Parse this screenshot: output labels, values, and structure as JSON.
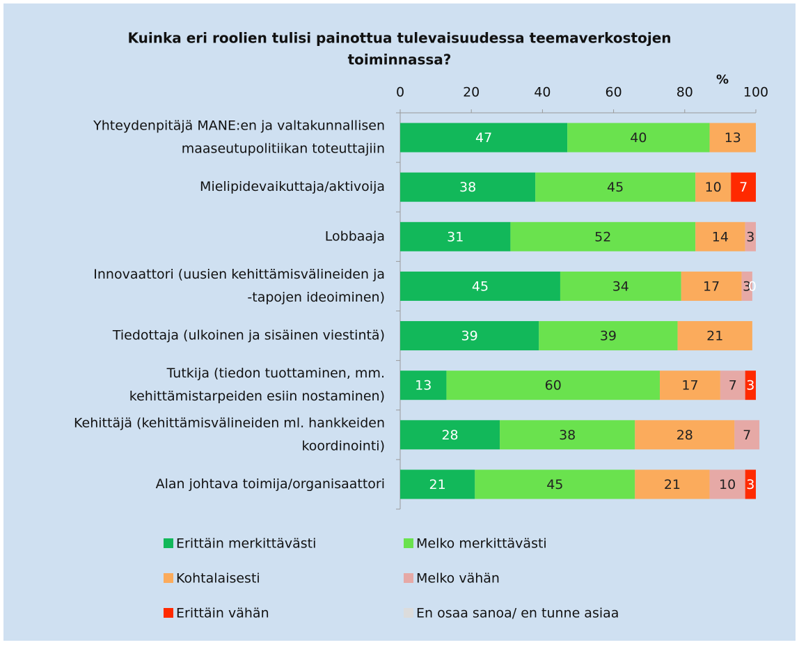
{
  "chart_data": {
    "type": "stacked-barh",
    "title": [
      "Kuinka eri roolien tulisi painottua tulevaisuudessa teemaverkostojen",
      "toiminnassa?"
    ],
    "x_label": "%",
    "categories": [
      [
        "Yhteydenpitäjä MANE:en ja valtakunnallisen",
        "maaseutupolitiikan toteuttajiin"
      ],
      [
        "Mielipidevaikuttaja/aktivoija"
      ],
      [
        "Lobbaaja"
      ],
      [
        "Innovaattori (uusien kehittämisvälineiden ja",
        "-tapojen ideoiminen)"
      ],
      [
        "Tiedottaja (ulkoinen ja sisäinen viestintä)"
      ],
      [
        "Tutkija (tiedon tuottaminen, mm.",
        "kehittämistarpeiden esiin nostaminen)"
      ],
      [
        "Kehittäjä (kehittämisvälineiden ml. hankkeiden",
        "koordinointi)"
      ],
      [
        "Alan johtava toimija/organisaattori"
      ]
    ],
    "series": [
      {
        "name": "Erittäin merkittävästi",
        "color": "#12b85a",
        "label_color": "#ffffff",
        "values": [
          47,
          38,
          31,
          45,
          39,
          13,
          28,
          21
        ]
      },
      {
        "name": "Melko merkittävästi",
        "color": "#6ae24e",
        "label_color": "#222222",
        "values": [
          40,
          45,
          52,
          34,
          39,
          60,
          38,
          45
        ]
      },
      {
        "name": "Kohtalaisesti",
        "color": "#fbab5c",
        "label_color": "#222222",
        "values": [
          13,
          10,
          14,
          17,
          21,
          17,
          28,
          21
        ]
      },
      {
        "name": "Melko vähän",
        "color": "#e6a9a6",
        "label_color": "#222222",
        "values": [
          null,
          null,
          3,
          3,
          null,
          7,
          7,
          10
        ]
      },
      {
        "name": "Erittäin vähän",
        "color": "#ff2a00",
        "label_color": "#ffffff",
        "values": [
          null,
          7,
          null,
          null,
          null,
          3,
          null,
          3
        ]
      },
      {
        "name": "En osaa sanoa/ en tunne asiaa",
        "color": "#dcdcdc",
        "label_color": "#ffffff",
        "values": [
          null,
          null,
          null,
          0,
          null,
          null,
          null,
          null
        ]
      }
    ],
    "xlim": [
      0,
      100
    ],
    "xticks": [
      0,
      20,
      40,
      60,
      80,
      100
    ]
  }
}
